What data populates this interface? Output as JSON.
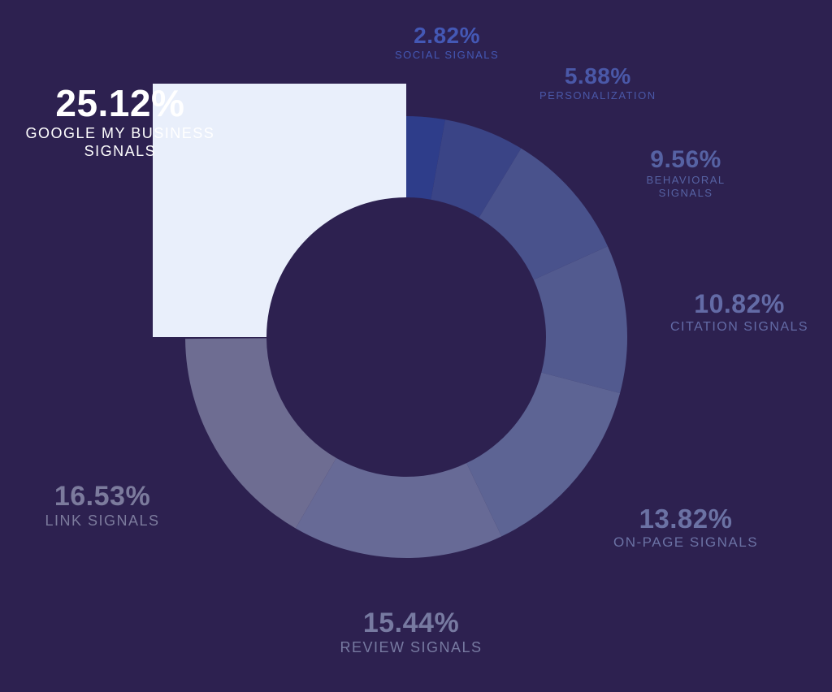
{
  "chart_data": {
    "type": "pie",
    "style": "donut",
    "slices": [
      {
        "pct_label": "2.82%",
        "value": 2.82,
        "label_lines": [
          "SOCIAL SIGNALS"
        ],
        "color": "#2e3d8a",
        "label_color": "#4458b5"
      },
      {
        "pct_label": "5.88%",
        "value": 5.88,
        "label_lines": [
          "PERSONALIZATION"
        ],
        "color": "#3a4486",
        "label_color": "#4a58a8"
      },
      {
        "pct_label": "9.56%",
        "value": 9.56,
        "label_lines": [
          "BEHAVIORAL",
          "SIGNALS"
        ],
        "color": "#49528c",
        "label_color": "#5662a3"
      },
      {
        "pct_label": "10.82%",
        "value": 10.82,
        "label_lines": [
          "CITATION SIGNALS"
        ],
        "color": "#525a8f",
        "label_color": "#636ba6"
      },
      {
        "pct_label": "13.82%",
        "value": 13.82,
        "label_lines": [
          "ON-PAGE SIGNALS"
        ],
        "color": "#5d6494",
        "label_color": "#6b72a4"
      },
      {
        "pct_label": "15.44%",
        "value": 15.44,
        "label_lines": [
          "REVIEW SIGNALS"
        ],
        "color": "#676a96",
        "label_color": "#777aa1"
      },
      {
        "pct_label": "16.53%",
        "value": 16.53,
        "label_lines": [
          "LINK SIGNALS"
        ],
        "color": "#6e6d92",
        "label_color": "#7c7b9d"
      },
      {
        "pct_label": "25.12%",
        "value": 25.12,
        "label_lines": [
          "GOOGLE MY BUSINESS",
          "SIGNALS"
        ],
        "color": "#e9effb",
        "label_color": "#ffffff",
        "highlighted": true
      }
    ],
    "background_color": "#2d2150"
  }
}
